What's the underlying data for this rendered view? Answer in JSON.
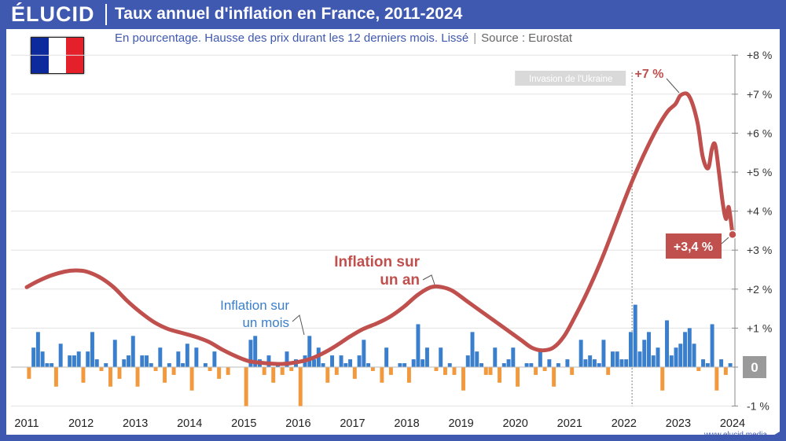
{
  "brand": "ÉLUCID",
  "title": "Taux annuel d'inflation en France, 2011-2024",
  "subtitle": {
    "text": "En pourcentage. Hausse des prix durant les 12 derniers mois. Lissé",
    "separator": "|",
    "source": "Source : Eurostat"
  },
  "footer": "www.elucid.media",
  "colors": {
    "header": "#3f58b0",
    "annual": "#c0504d",
    "monthly_pos": "#3a7fcd",
    "monthly_neg": "#f3993d"
  },
  "flag_colors": [
    "#0d2a9d",
    "#ffffff",
    "#e4202b"
  ],
  "chart_data": {
    "type": "line",
    "x_range": [
      2011.0,
      2024.0
    ],
    "ylim": [
      -1,
      8
    ],
    "y_ticks": [
      "-1 %",
      "0",
      "+1 %",
      "+2 %",
      "+3 %",
      "+4 %",
      "+5 %",
      "+6 %",
      "+7 %",
      "+8 %"
    ],
    "x_ticks": [
      "2011",
      "2012",
      "2013",
      "2014",
      "2015",
      "2016",
      "2017",
      "2018",
      "2019",
      "2020",
      "2021",
      "2022",
      "2023",
      "2024"
    ],
    "annotation_vline": {
      "x": 2022.15,
      "label": "Invasion de l'Ukraine"
    },
    "series": [
      {
        "name": "Inflation sur un an",
        "label_line1": "Inflation sur",
        "label_line2": "un an",
        "type": "line",
        "points": [
          [
            2011.0,
            2.05
          ],
          [
            2011.2,
            2.2
          ],
          [
            2011.45,
            2.35
          ],
          [
            2011.7,
            2.45
          ],
          [
            2011.9,
            2.48
          ],
          [
            2012.1,
            2.45
          ],
          [
            2012.35,
            2.3
          ],
          [
            2012.6,
            2.05
          ],
          [
            2012.85,
            1.7
          ],
          [
            2013.1,
            1.4
          ],
          [
            2013.35,
            1.15
          ],
          [
            2013.6,
            0.98
          ],
          [
            2013.85,
            0.88
          ],
          [
            2014.1,
            0.78
          ],
          [
            2014.35,
            0.65
          ],
          [
            2014.6,
            0.45
          ],
          [
            2014.85,
            0.28
          ],
          [
            2015.1,
            0.15
          ],
          [
            2015.4,
            0.1
          ],
          [
            2015.7,
            0.08
          ],
          [
            2015.95,
            0.12
          ],
          [
            2016.2,
            0.2
          ],
          [
            2016.45,
            0.35
          ],
          [
            2016.7,
            0.55
          ],
          [
            2016.95,
            0.78
          ],
          [
            2017.2,
            0.98
          ],
          [
            2017.45,
            1.12
          ],
          [
            2017.7,
            1.3
          ],
          [
            2017.95,
            1.55
          ],
          [
            2018.2,
            1.85
          ],
          [
            2018.45,
            2.05
          ],
          [
            2018.65,
            2.05
          ],
          [
            2018.85,
            1.95
          ],
          [
            2019.1,
            1.7
          ],
          [
            2019.35,
            1.45
          ],
          [
            2019.6,
            1.2
          ],
          [
            2019.85,
            0.95
          ],
          [
            2020.1,
            0.7
          ],
          [
            2020.3,
            0.5
          ],
          [
            2020.5,
            0.43
          ],
          [
            2020.7,
            0.5
          ],
          [
            2020.9,
            0.8
          ],
          [
            2021.1,
            1.3
          ],
          [
            2021.35,
            2.0
          ],
          [
            2021.6,
            2.8
          ],
          [
            2021.85,
            3.7
          ],
          [
            2022.1,
            4.6
          ],
          [
            2022.35,
            5.4
          ],
          [
            2022.6,
            6.1
          ],
          [
            2022.8,
            6.55
          ],
          [
            2022.95,
            6.75
          ],
          [
            2023.05,
            6.98
          ],
          [
            2023.2,
            6.95
          ],
          [
            2023.35,
            6.3
          ],
          [
            2023.45,
            5.4
          ],
          [
            2023.55,
            5.1
          ],
          [
            2023.62,
            5.6
          ],
          [
            2023.68,
            5.7
          ],
          [
            2023.75,
            5.0
          ],
          [
            2023.82,
            4.2
          ],
          [
            2023.88,
            3.8
          ],
          [
            2023.93,
            4.1
          ],
          [
            2024.0,
            3.4
          ]
        ],
        "peak_label": "+7 %",
        "last_label": "+3,4 %"
      },
      {
        "name": "Inflation sur un mois",
        "label_line1": "Inflation sur",
        "label_line2": "un mois",
        "type": "bar",
        "values": [
          -0.3,
          0.5,
          0.9,
          0.4,
          0.1,
          0.1,
          -0.5,
          0.6,
          0.0,
          0.3,
          0.3,
          0.4,
          -0.4,
          0.4,
          0.9,
          0.2,
          -0.1,
          0.1,
          -0.5,
          0.7,
          -0.3,
          0.2,
          0.3,
          0.8,
          -0.5,
          0.3,
          0.3,
          0.1,
          -0.1,
          0.5,
          -0.4,
          0.1,
          -0.2,
          0.4,
          0.1,
          0.6,
          -0.6,
          0.5,
          0.0,
          0.1,
          -0.1,
          0.4,
          -0.3,
          0.0,
          -0.2,
          0.0,
          0.0,
          0.0,
          -1.0,
          0.7,
          0.8,
          0.2,
          -0.2,
          0.3,
          -0.4,
          0.1,
          -0.2,
          0.4,
          -0.1,
          0.2,
          -1.0,
          0.3,
          0.8,
          0.2,
          0.5,
          0.1,
          -0.4,
          0.3,
          -0.2,
          0.3,
          0.1,
          0.2,
          -0.3,
          0.3,
          0.7,
          0.1,
          -0.1,
          0.0,
          -0.4,
          0.5,
          -0.2,
          0.0,
          0.1,
          0.1,
          -0.4,
          0.2,
          1.1,
          0.2,
          0.5,
          0.0,
          -0.1,
          0.5,
          -0.2,
          0.1,
          -0.2,
          0.0,
          -0.6,
          0.3,
          0.9,
          0.4,
          0.1,
          -0.2,
          -0.2,
          0.5,
          -0.4,
          0.1,
          0.2,
          0.5,
          -0.5,
          0.0,
          0.1,
          0.1,
          -0.2,
          0.4,
          -0.1,
          0.2,
          -0.5,
          0.1,
          0.0,
          0.2,
          -0.2,
          0.0,
          0.7,
          0.2,
          0.3,
          0.2,
          0.1,
          0.7,
          -0.2,
          0.4,
          0.4,
          0.2,
          0.2,
          0.9,
          1.6,
          0.4,
          0.7,
          0.9,
          0.3,
          0.5,
          -0.6,
          1.2,
          0.3,
          0.5,
          0.6,
          0.9,
          1.0,
          0.6,
          -0.1,
          0.2,
          0.1,
          1.1,
          -0.6,
          0.2,
          -0.2,
          0.1
        ]
      }
    ]
  }
}
